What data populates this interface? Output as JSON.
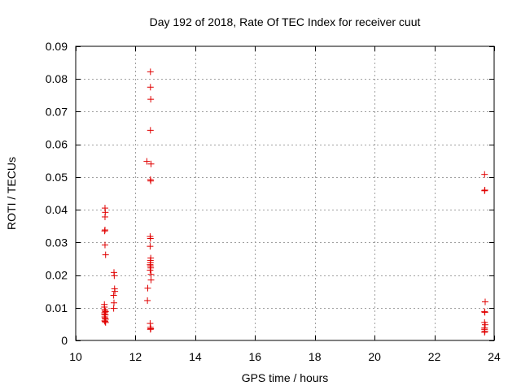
{
  "chart_data": {
    "type": "scatter",
    "title": "Day 192 of 2018, Rate Of TEC Index for receiver cuut",
    "xlabel": "GPS time / hours",
    "ylabel": "ROTI / TECUs",
    "xlim": [
      10,
      24
    ],
    "ylim": [
      0,
      0.09
    ],
    "xticks": [
      10,
      12,
      14,
      16,
      18,
      20,
      22,
      24
    ],
    "xtick_labels": [
      "10",
      "12",
      "14",
      "16",
      "18",
      "20",
      "22",
      "24"
    ],
    "yticks": [
      0,
      0.01,
      0.02,
      0.03,
      0.04,
      0.05,
      0.06,
      0.07,
      0.08,
      0.09
    ],
    "ytick_labels": [
      "0",
      "0.01",
      "0.02",
      "0.03",
      "0.04",
      "0.05",
      "0.06",
      "0.07",
      "0.08",
      "0.09"
    ],
    "grid": true,
    "marker": "+",
    "series": [
      {
        "name": "ROTI",
        "color": "#e00000",
        "x": [
          10.98,
          10.99,
          10.98,
          10.98,
          10.97,
          10.98,
          11.0,
          10.96,
          10.96,
          10.97,
          10.98,
          11.0,
          10.97,
          10.96,
          10.99,
          10.97,
          10.98,
          11.0,
          10.97,
          10.98,
          11.0,
          11.28,
          11.29,
          11.3,
          11.31,
          11.27,
          11.28,
          11.27,
          12.5,
          12.5,
          12.51,
          12.5,
          12.38,
          12.52,
          12.5,
          12.51,
          12.49,
          12.5,
          12.49,
          12.51,
          12.5,
          12.5,
          12.49,
          12.5,
          12.51,
          12.49,
          12.52,
          12.52,
          12.41,
          12.4,
          12.49,
          12.5,
          12.51,
          12.5,
          23.68,
          23.69,
          23.68,
          23.7,
          23.68,
          23.69,
          23.68,
          23.7,
          23.68,
          23.68,
          23.69,
          23.68
        ],
        "y": [
          0.0405,
          0.0392,
          0.0378,
          0.0338,
          0.0335,
          0.0292,
          0.0262,
          0.011,
          0.0102,
          0.0095,
          0.009,
          0.0088,
          0.0085,
          0.008,
          0.0078,
          0.0072,
          0.0068,
          0.0065,
          0.006,
          0.0058,
          0.0055,
          0.0208,
          0.0198,
          0.0158,
          0.015,
          0.0138,
          0.0115,
          0.0098,
          0.0822,
          0.0775,
          0.0738,
          0.0643,
          0.0548,
          0.054,
          0.0492,
          0.0488,
          0.0318,
          0.0312,
          0.0288,
          0.0252,
          0.0245,
          0.0238,
          0.0232,
          0.0228,
          0.0222,
          0.0215,
          0.0202,
          0.0185,
          0.016,
          0.0122,
          0.0052,
          0.004,
          0.0036,
          0.0034,
          0.0508,
          0.046,
          0.0458,
          0.0118,
          0.0088,
          0.0086,
          0.0055,
          0.0048,
          0.0038,
          0.0034,
          0.0028,
          0.0025
        ]
      }
    ]
  }
}
